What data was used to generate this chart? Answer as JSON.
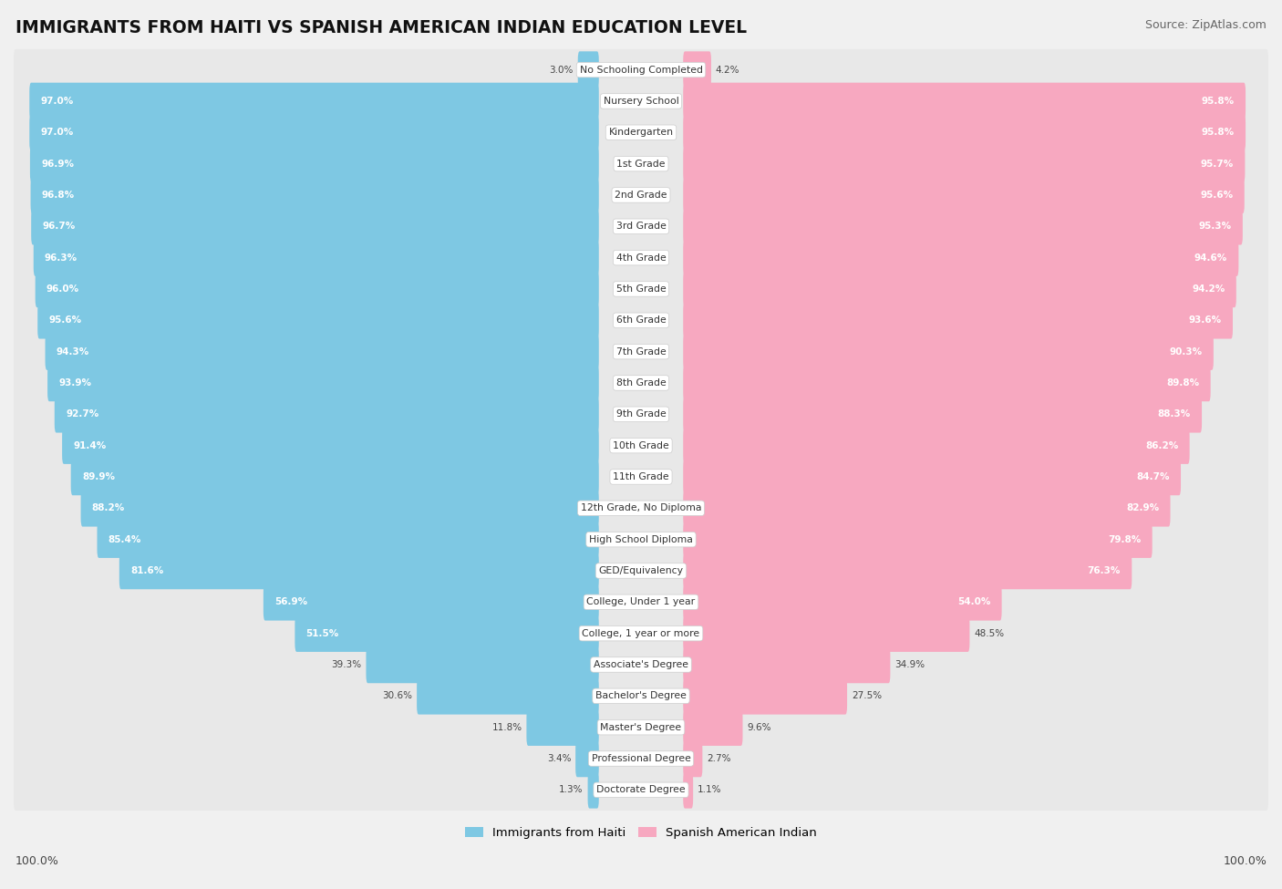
{
  "title": "IMMIGRANTS FROM HAITI VS SPANISH AMERICAN INDIAN EDUCATION LEVEL",
  "source": "Source: ZipAtlas.com",
  "categories": [
    "No Schooling Completed",
    "Nursery School",
    "Kindergarten",
    "1st Grade",
    "2nd Grade",
    "3rd Grade",
    "4th Grade",
    "5th Grade",
    "6th Grade",
    "7th Grade",
    "8th Grade",
    "9th Grade",
    "10th Grade",
    "11th Grade",
    "12th Grade, No Diploma",
    "High School Diploma",
    "GED/Equivalency",
    "College, Under 1 year",
    "College, 1 year or more",
    "Associate's Degree",
    "Bachelor's Degree",
    "Master's Degree",
    "Professional Degree",
    "Doctorate Degree"
  ],
  "haiti_values": [
    3.0,
    97.0,
    97.0,
    96.9,
    96.8,
    96.7,
    96.3,
    96.0,
    95.6,
    94.3,
    93.9,
    92.7,
    91.4,
    89.9,
    88.2,
    85.4,
    81.6,
    56.9,
    51.5,
    39.3,
    30.6,
    11.8,
    3.4,
    1.3
  ],
  "spanish_values": [
    4.2,
    95.8,
    95.8,
    95.7,
    95.6,
    95.3,
    94.6,
    94.2,
    93.6,
    90.3,
    89.8,
    88.3,
    86.2,
    84.7,
    82.9,
    79.8,
    76.3,
    54.0,
    48.5,
    34.9,
    27.5,
    9.6,
    2.7,
    1.1
  ],
  "haiti_color": "#7ec8e3",
  "spanish_color": "#f7a8c0",
  "background_color": "#f0f0f0",
  "bar_bg_color": "#e0e0e0",
  "row_bg_color": "#e8e8e8",
  "legend_haiti": "Immigrants from Haiti",
  "legend_spanish": "Spanish American Indian",
  "left_label": "100.0%",
  "right_label": "100.0%"
}
